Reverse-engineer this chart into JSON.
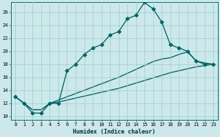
{
  "xlabel": "Humidex (Indice chaleur)",
  "background_color": "#cce8ea",
  "grid_color": "#99cccc",
  "line_color": "#006666",
  "xlim": [
    -0.5,
    23.5
  ],
  "ylim": [
    9.5,
    27.5
  ],
  "xticks": [
    0,
    1,
    2,
    3,
    4,
    5,
    6,
    7,
    8,
    9,
    10,
    11,
    12,
    13,
    14,
    15,
    16,
    17,
    18,
    19,
    20,
    21,
    22,
    23
  ],
  "yticks": [
    10,
    12,
    14,
    16,
    18,
    20,
    22,
    24,
    26
  ],
  "line1_x": [
    0,
    1,
    2,
    3,
    4,
    5,
    6,
    7,
    8,
    9,
    10,
    11,
    12,
    13,
    14,
    15,
    16,
    17,
    18,
    19,
    20,
    21,
    22,
    23
  ],
  "line1_y": [
    13,
    12,
    10.5,
    10.5,
    12,
    12,
    17,
    18,
    19.5,
    20.5,
    21,
    22.5,
    23,
    25,
    25.5,
    27.5,
    26.5,
    24.5,
    21,
    20.5,
    20,
    18.5,
    18,
    18
  ],
  "line2_x": [
    0,
    1,
    2,
    3,
    4,
    5,
    6,
    7,
    8,
    9,
    10,
    11,
    12,
    13,
    14,
    15,
    16,
    17,
    18,
    19,
    20,
    21,
    22,
    23
  ],
  "line2_y": [
    13,
    12,
    11,
    11,
    12,
    12.2,
    12.5,
    12.8,
    13.1,
    13.4,
    13.7,
    14.0,
    14.3,
    14.7,
    15.1,
    15.5,
    15.9,
    16.3,
    16.7,
    17.0,
    17.3,
    17.6,
    17.8,
    18.0
  ],
  "line3_x": [
    0,
    1,
    2,
    3,
    4,
    5,
    6,
    7,
    8,
    9,
    10,
    11,
    12,
    13,
    14,
    15,
    16,
    17,
    18,
    19,
    20,
    21,
    22,
    23
  ],
  "line3_y": [
    13,
    12,
    11,
    11,
    12,
    12.5,
    13.0,
    13.5,
    14.0,
    14.5,
    15.0,
    15.5,
    16.0,
    16.6,
    17.2,
    17.8,
    18.4,
    18.8,
    19.0,
    19.5,
    19.9,
    18.5,
    18.2,
    18.0
  ],
  "marker": "D",
  "markersize": 2.5,
  "linewidth": 1.0,
  "xlabel_fontsize": 6,
  "tick_fontsize": 5.0
}
